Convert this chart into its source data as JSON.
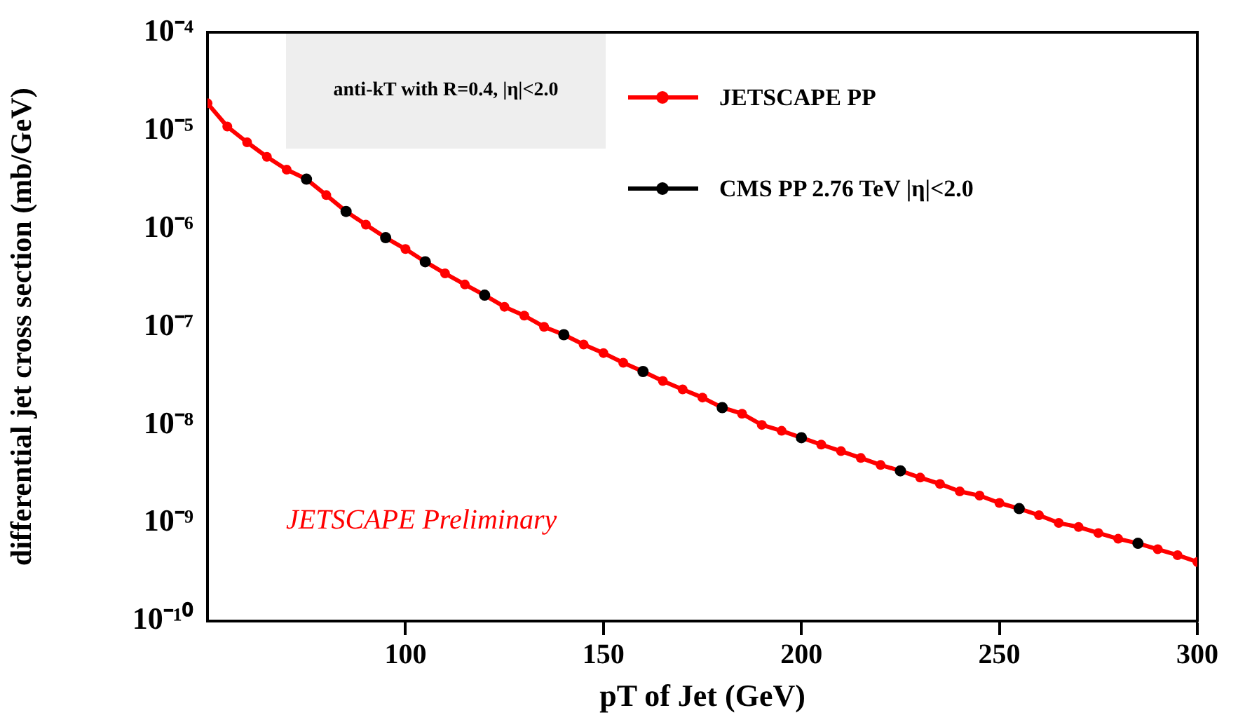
{
  "chart_data": {
    "type": "line",
    "xlabel": "pT of Jet (GeV)",
    "ylabel": "differential jet cross section (mb/GeV)",
    "annotations": [
      "anti-kT with R=0.4, |η|<2.0",
      "JETSCAPE Preliminary"
    ],
    "series": [
      {
        "name": "JETSCAPE PP",
        "color": "#ff0000",
        "type": "line",
        "marker": "circle",
        "x": [
          50,
          55,
          60,
          65,
          70,
          75,
          80,
          85,
          90,
          95,
          100,
          105,
          110,
          115,
          120,
          125,
          130,
          135,
          140,
          145,
          150,
          155,
          160,
          165,
          170,
          175,
          180,
          185,
          190,
          195,
          200,
          205,
          210,
          215,
          220,
          225,
          230,
          235,
          240,
          245,
          250,
          255,
          260,
          265,
          270,
          275,
          280,
          285,
          290,
          295,
          300
        ],
        "values": [
          1.9e-05,
          1.1e-05,
          7.6e-06,
          5.4e-06,
          4e-06,
          3.2e-06,
          2.2e-06,
          1.5e-06,
          1.1e-06,
          8.1e-07,
          6.2e-07,
          4.6e-07,
          3.5e-07,
          2.7e-07,
          2.1e-07,
          1.6e-07,
          1.3e-07,
          1e-07,
          8.3e-08,
          6.6e-08,
          5.4e-08,
          4.3e-08,
          3.5e-08,
          2.8e-08,
          2.3e-08,
          1.9e-08,
          1.5e-08,
          1.3e-08,
          1e-08,
          8.7e-09,
          7.4e-09,
          6.3e-09,
          5.4e-09,
          4.6e-09,
          3.9e-09,
          3.4e-09,
          2.9e-09,
          2.5e-09,
          2.1e-09,
          1.9e-09,
          1.6e-09,
          1.4e-09,
          1.2e-09,
          1e-09,
          9.1e-10,
          7.9e-10,
          6.9e-10,
          6.2e-10,
          5.4e-10,
          4.7e-10,
          4e-10
        ]
      },
      {
        "name": "CMS PP 2.76 TeV |η|<2.0",
        "color": "#000000",
        "type": "scatter",
        "marker": "circle",
        "x": [
          75,
          85,
          95,
          105,
          120,
          140,
          160,
          180,
          200,
          225,
          255,
          285
        ],
        "values": [
          3.2e-06,
          1.5e-06,
          8.1e-07,
          4.6e-07,
          2.1e-07,
          8.3e-08,
          3.5e-08,
          1.5e-08,
          7.4e-09,
          3.4e-09,
          1.4e-09,
          6.2e-10
        ]
      }
    ],
    "log": "y",
    "xlim": [
      50,
      300
    ],
    "xticks": [
      100,
      150,
      200,
      250,
      300
    ],
    "ylim": [
      1e-10,
      0.0001
    ],
    "yticks": [
      {
        "value": 1e-10,
        "label": "10⁻¹⁰"
      },
      {
        "value": 1e-09,
        "label": "10⁻⁹"
      },
      {
        "value": 1e-08,
        "label": "10⁻⁸"
      },
      {
        "value": 1e-07,
        "label": "10⁻⁷"
      },
      {
        "value": 1e-06,
        "label": "10⁻⁶"
      },
      {
        "value": 1e-05,
        "label": "10⁻⁵"
      },
      {
        "value": 0.0001,
        "label": "10⁻⁴"
      }
    ],
    "grid": false,
    "legend": "top right"
  }
}
